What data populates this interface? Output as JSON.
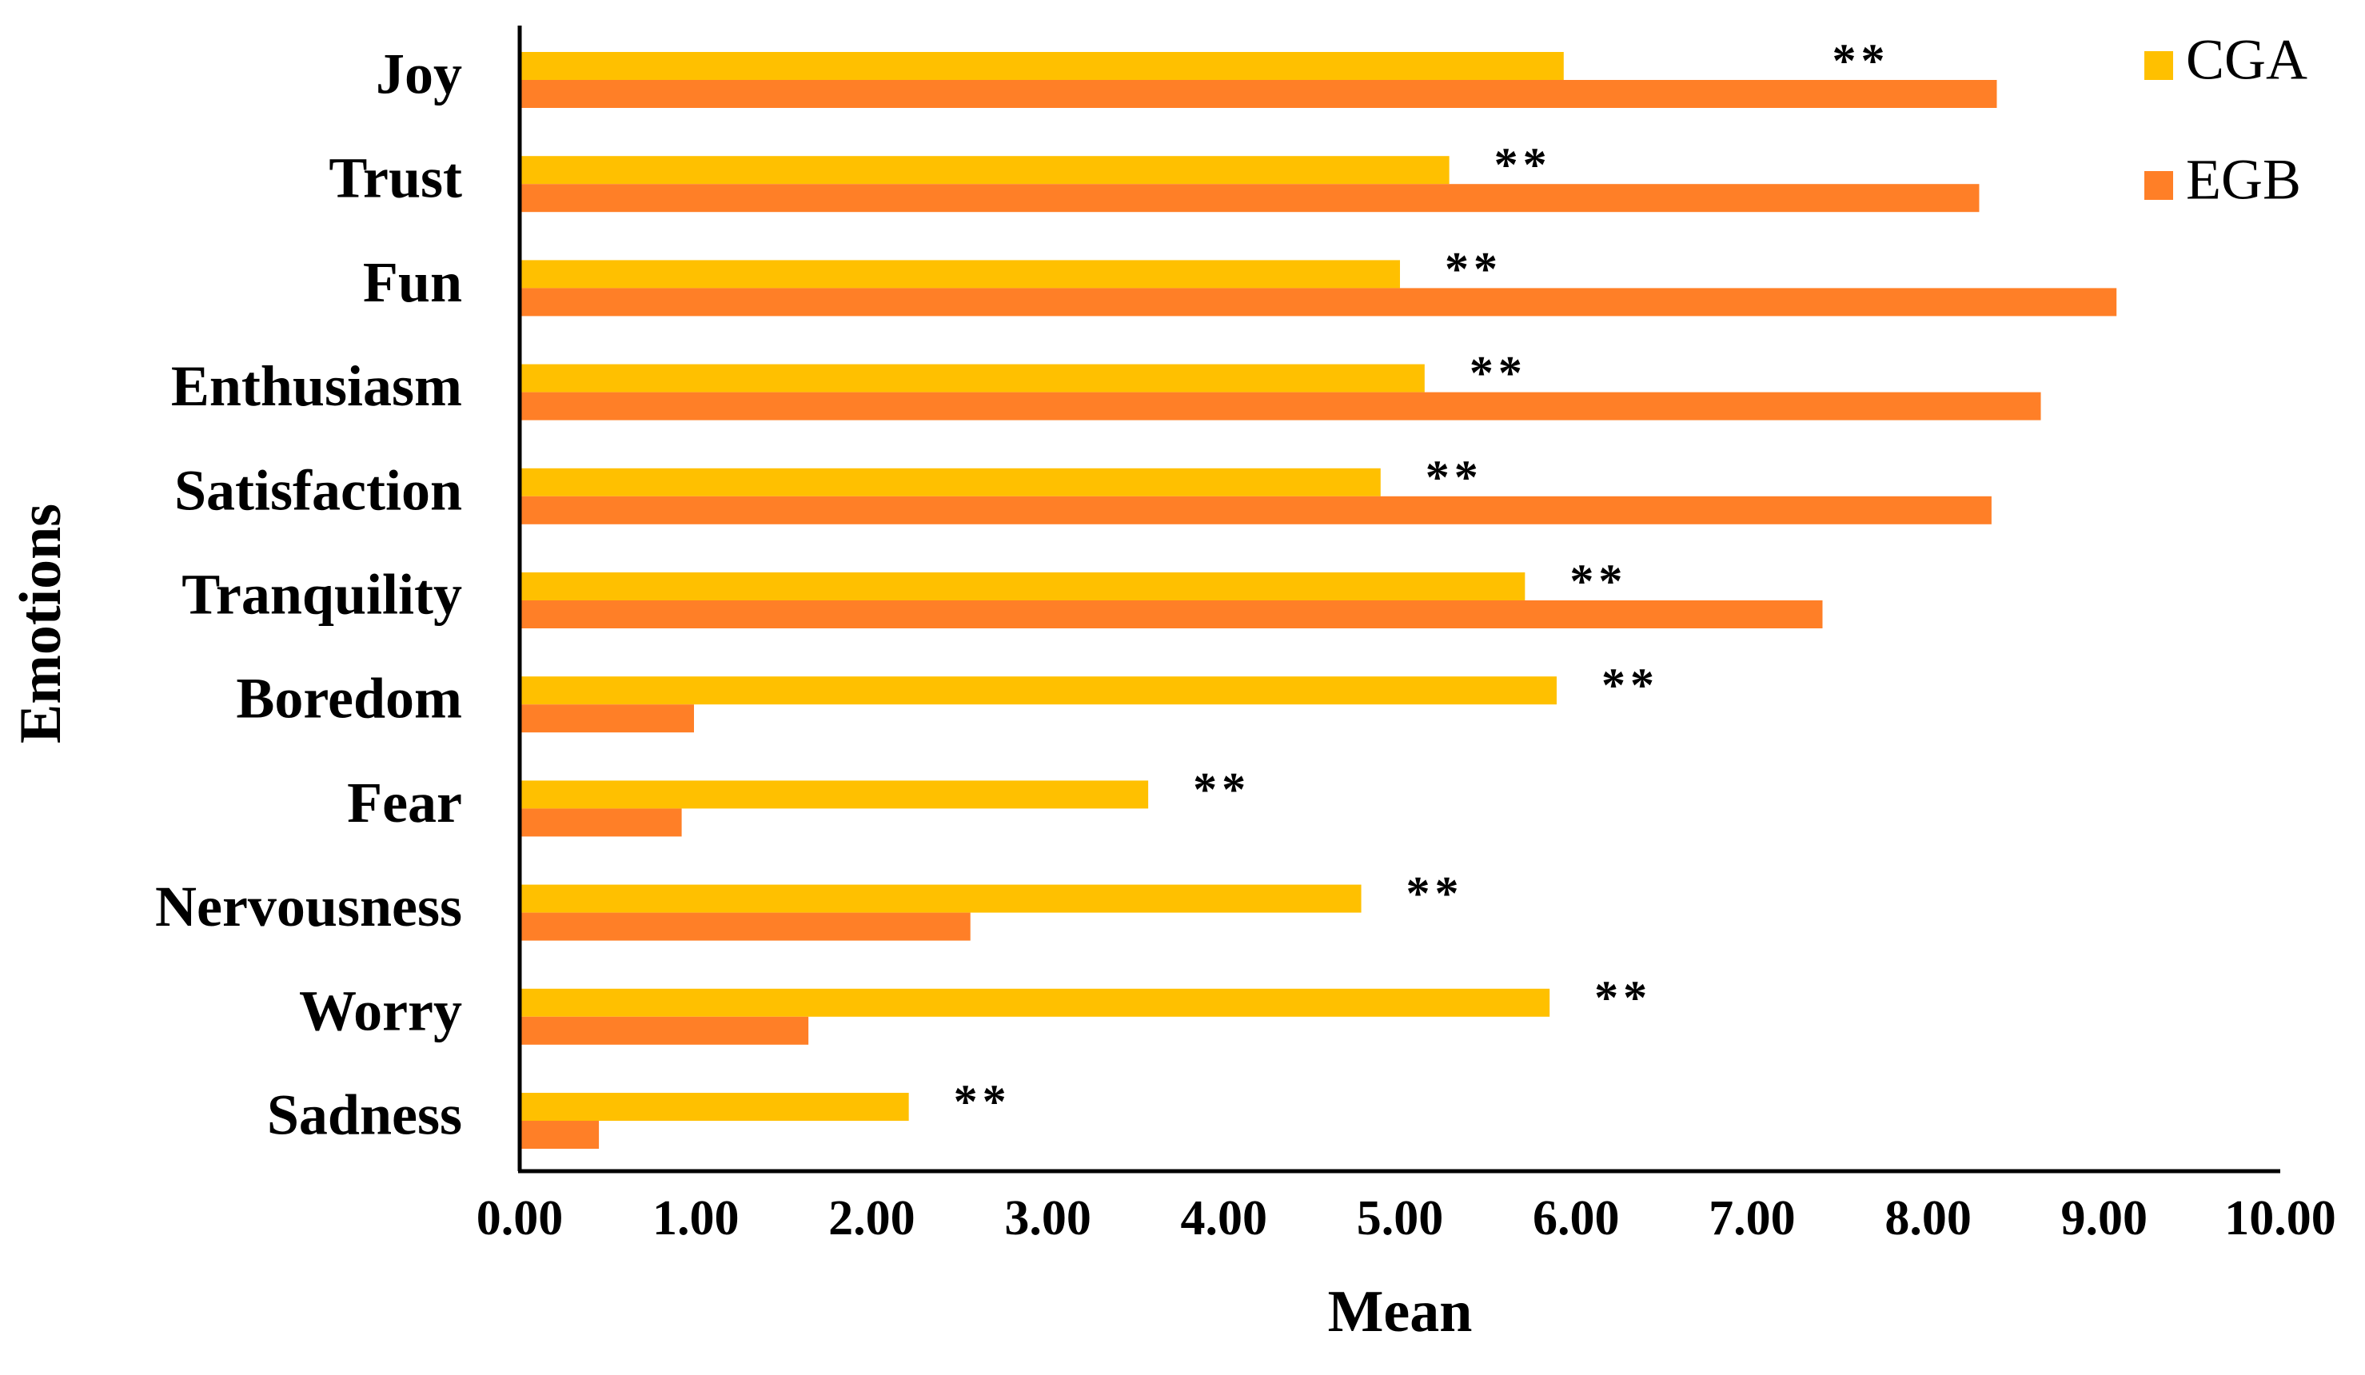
{
  "chart_data": {
    "type": "bar",
    "orientation": "horizontal",
    "title": "",
    "xlabel": "Mean",
    "ylabel": "Emotions",
    "xlim": [
      0,
      10
    ],
    "xticks": [
      "0.00",
      "1.00",
      "2.00",
      "3.00",
      "4.00",
      "5.00",
      "6.00",
      "7.00",
      "8.00",
      "9.00",
      "10.00"
    ],
    "grid": false,
    "legend_position": "top-right",
    "categories": [
      "Joy",
      "Trust",
      "Fun",
      "Enthusiasm",
      "Satisfaction",
      "Tranquility",
      "Boredom",
      "Fear",
      "Nervousness",
      "Worry",
      "Sadness"
    ],
    "series": [
      {
        "name": "CGA",
        "color": "#FFC000",
        "values": [
          5.93,
          5.28,
          5.0,
          5.14,
          4.89,
          5.71,
          5.89,
          3.57,
          4.78,
          5.85,
          2.21
        ]
      },
      {
        "name": "EGB",
        "color": "#FF7F27",
        "values": [
          8.39,
          8.29,
          9.07,
          8.64,
          8.36,
          7.4,
          0.99,
          0.92,
          2.56,
          1.64,
          0.45
        ]
      }
    ],
    "annotations": [
      {
        "category": "Joy",
        "text": "**"
      },
      {
        "category": "Trust",
        "text": "**"
      },
      {
        "category": "Fun",
        "text": "**"
      },
      {
        "category": "Enthusiasm",
        "text": "**"
      },
      {
        "category": "Satisfaction",
        "text": "**"
      },
      {
        "category": "Tranquility",
        "text": "**"
      },
      {
        "category": "Boredom",
        "text": "**"
      },
      {
        "category": "Fear",
        "text": "**"
      },
      {
        "category": "Nervousness",
        "text": "**"
      },
      {
        "category": "Worry",
        "text": "**"
      },
      {
        "category": "Sadness",
        "text": "**"
      }
    ]
  }
}
